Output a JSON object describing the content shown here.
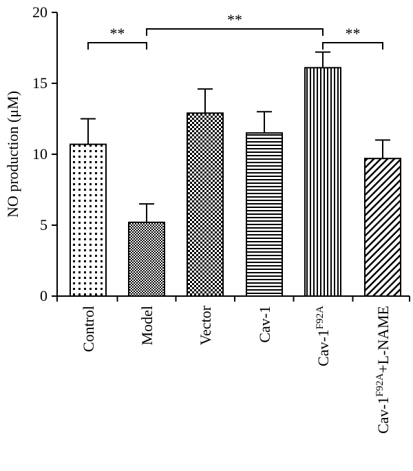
{
  "chart_data": {
    "type": "bar",
    "ylabel": "NO production (μM)",
    "ylim": [
      0,
      20
    ],
    "yticks": [
      "0",
      "5",
      "10",
      "15",
      "20"
    ],
    "categories": [
      {
        "main": "Control",
        "sup": "",
        "tail": ""
      },
      {
        "main": "Model",
        "sup": "",
        "tail": ""
      },
      {
        "main": "Vector",
        "sup": "",
        "tail": ""
      },
      {
        "main": "Cav-1",
        "sup": "",
        "tail": ""
      },
      {
        "main": "Cav-1",
        "sup": "F92A",
        "tail": ""
      },
      {
        "main": "Cav-1",
        "sup": "F92A",
        "tail": "+L-NAME"
      }
    ],
    "values": [
      10.7,
      5.2,
      12.9,
      11.5,
      16.1,
      9.7
    ],
    "errors": [
      1.8,
      1.3,
      1.7,
      1.5,
      1.1,
      1.3
    ],
    "significance": [
      {
        "from": 0,
        "to": 1,
        "label": "**"
      },
      {
        "from": 1,
        "to": 4,
        "label": "**"
      },
      {
        "from": 4,
        "to": 5,
        "label": "**"
      }
    ],
    "grid": false,
    "legend": "none"
  }
}
